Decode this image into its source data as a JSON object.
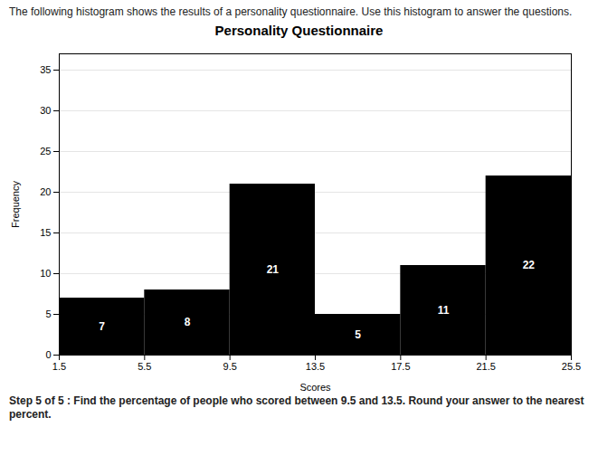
{
  "chart_data": {
    "type": "histogram",
    "title": "Personality Questionnaire",
    "xlabel": "Scores",
    "ylabel": "Frequency",
    "annotations": [
      "The following histogram shows the results of a personality questionnaire. Use this histogram to answer the questions.",
      "Step 5 of 5 :  Find the percentage of people who scored between 9.5 and 13.5. Round your answer to the nearest percent."
    ],
    "bins": [
      1.5,
      5.5,
      9.5,
      13.5,
      17.5,
      21.5,
      25.5
    ],
    "values": [
      7,
      8,
      21,
      5,
      11,
      22
    ],
    "xlim": [
      1.5,
      25.5
    ],
    "xticks": [
      1.5,
      5.5,
      9.5,
      13.5,
      17.5,
      21.5,
      25.5
    ],
    "ylim": [
      0,
      37
    ],
    "yticks": [
      0,
      5,
      10,
      15,
      20,
      25,
      30,
      35
    ],
    "grid": true,
    "data_labels": true
  }
}
